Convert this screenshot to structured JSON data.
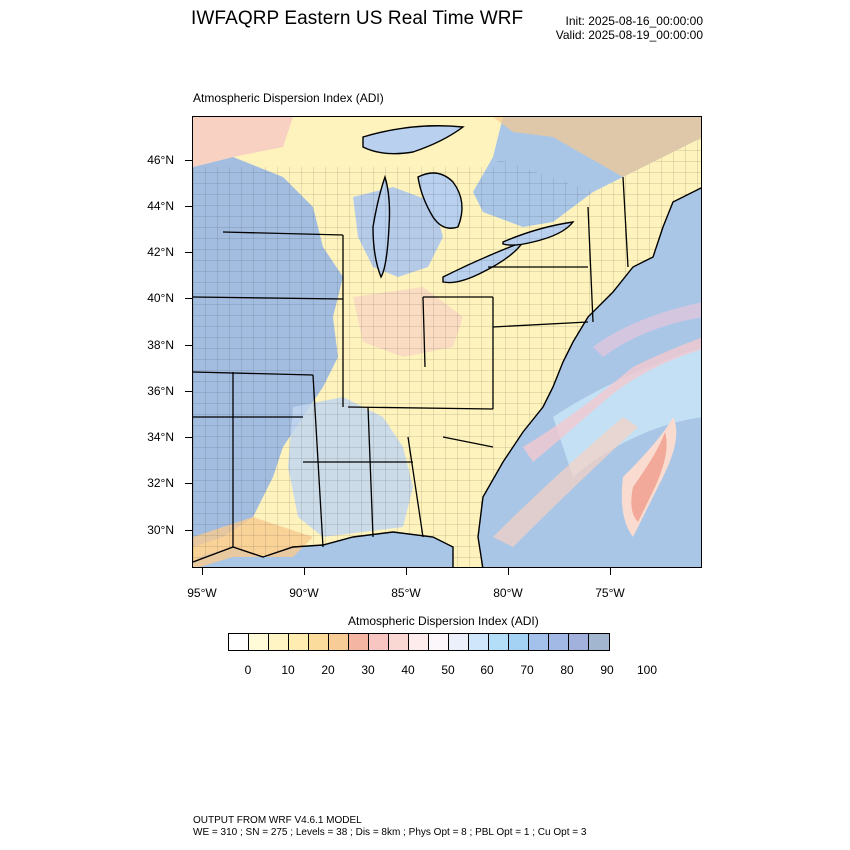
{
  "header": {
    "title": "IWFAQRP Eastern US Real Time WRF",
    "init": "Init: 2025-08-16_00:00:00",
    "valid": "Valid: 2025-08-19_00:00:00"
  },
  "map": {
    "subtitle": "Atmospheric Dispersion Index   (ADI)",
    "lat_labels": [
      "46°N",
      "44°N",
      "42°N",
      "40°N",
      "38°N",
      "36°N",
      "34°N",
      "32°N",
      "30°N"
    ],
    "lon_labels": [
      "95°W",
      "90°W",
      "85°W",
      "80°W",
      "75°W"
    ],
    "colors": {
      "ocean": "#a9c6e6",
      "low_yellow": "#fff7c2",
      "mid_orange": "#f7c98f",
      "pink": "#f5c6c6",
      "high_blue": "#a3bde0",
      "water_lake": "#b9d1ee",
      "boundary": "#000000"
    }
  },
  "colorbar": {
    "title": "Atmospheric Dispersion Index  (ADI)",
    "colors": [
      "#ffffff",
      "#fffbd9",
      "#fff5c4",
      "#ffecb0",
      "#fbdc9c",
      "#f8cc97",
      "#f5b5a3",
      "#f7c6c3",
      "#f9d8d4",
      "#fdeceb",
      "#fbf7fb",
      "#ebf0fb",
      "#cfe6fb",
      "#b4def8",
      "#a3d2f5",
      "#a4c1ec",
      "#a3b9e5",
      "#a1b1dc",
      "#a3b6d0"
    ],
    "labels": [
      "0",
      "10",
      "20",
      "30",
      "40",
      "50",
      "60",
      "70",
      "80",
      "90",
      "100"
    ]
  },
  "footer": {
    "line1": "OUTPUT FROM WRF V4.6.1 MODEL",
    "line2": "WE = 310 ; SN = 275 ; Levels = 38 ; Dis = 8km ; Phys Opt = 8 ; PBL Opt = 1 ; Cu Opt = 3"
  }
}
